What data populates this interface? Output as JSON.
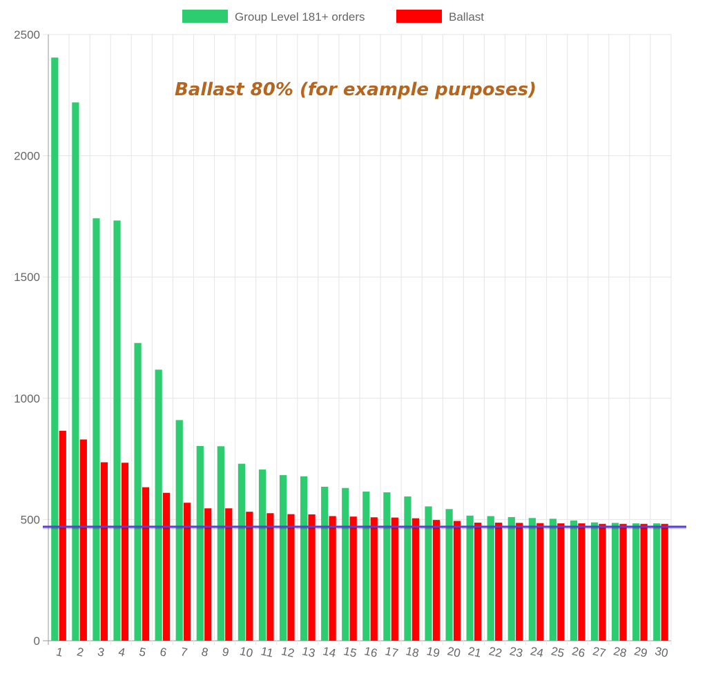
{
  "chart_data": {
    "type": "bar",
    "categories": [
      "1",
      "2",
      "3",
      "4",
      "5",
      "6",
      "7",
      "8",
      "9",
      "10",
      "11",
      "12",
      "13",
      "14",
      "15",
      "16",
      "17",
      "18",
      "19",
      "20",
      "21",
      "22",
      "23",
      "24",
      "25",
      "26",
      "27",
      "28",
      "29",
      "30"
    ],
    "series": [
      {
        "name": "Group Level 181+ orders",
        "color": "#2ecc71",
        "values": [
          2405,
          2220,
          1742,
          1733,
          1228,
          1118,
          910,
          803,
          802,
          730,
          706,
          683,
          678,
          635,
          630,
          615,
          612,
          595,
          554,
          543,
          516,
          514,
          510,
          506,
          503,
          496,
          488,
          486,
          484,
          484
        ]
      },
      {
        "name": "Ballast",
        "color": "#ff0000",
        "values": [
          866,
          830,
          736,
          734,
          633,
          610,
          569,
          546,
          546,
          532,
          526,
          522,
          521,
          514,
          512,
          509,
          508,
          505,
          498,
          494,
          487,
          487,
          486,
          485,
          484,
          484,
          482,
          482,
          482,
          482
        ]
      }
    ],
    "reference_line": {
      "value": 470,
      "color": "#5b3de6"
    },
    "annotation": {
      "text": "Ballast 80% (for example purposes)",
      "color": "#b5651d"
    },
    "ylim": [
      0,
      2500
    ],
    "yticks": [
      0,
      500,
      1000,
      1500,
      2000,
      2500
    ],
    "grid": true,
    "legend_position": "top",
    "title": "",
    "xlabel": "",
    "ylabel": ""
  }
}
